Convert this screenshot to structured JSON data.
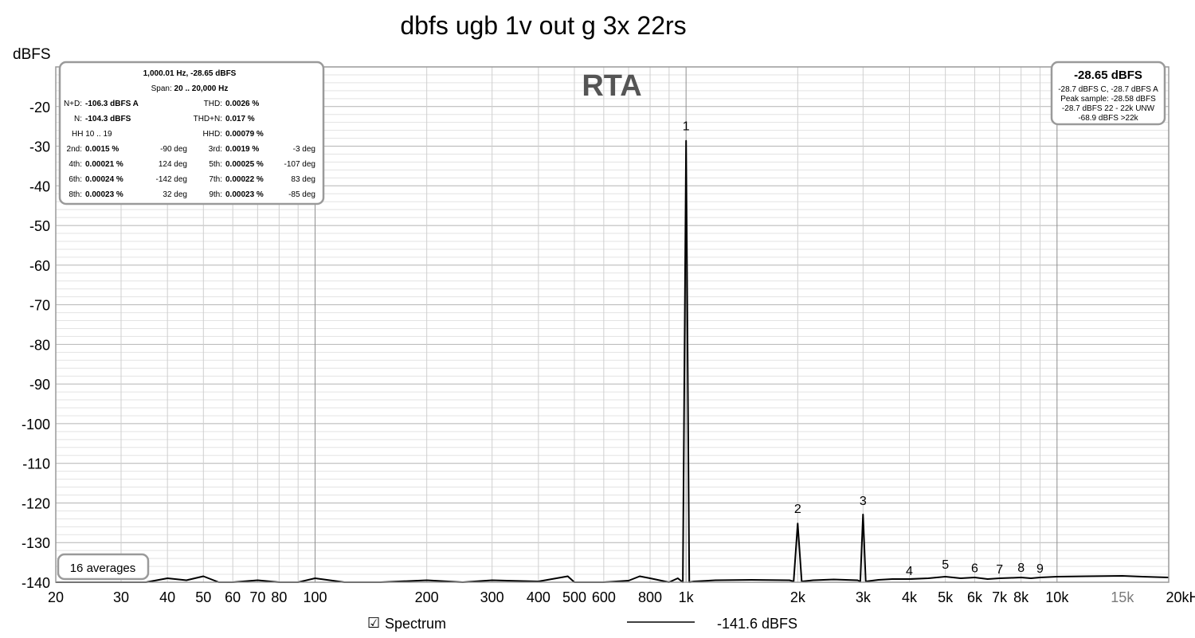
{
  "chart_data": {
    "type": "line",
    "title": "dbfs ugb 1v out g 3x 22rs",
    "ylabel": "dBFS",
    "xscale": "log",
    "xlim": [
      20,
      20000
    ],
    "ylim": [
      -140,
      -10
    ],
    "grid": true,
    "watermark": "RTA",
    "y_ticks": [
      {
        "v": -20,
        "label": "-20"
      },
      {
        "v": -30,
        "label": "-30"
      },
      {
        "v": -40,
        "label": "-40"
      },
      {
        "v": -50,
        "label": "-50"
      },
      {
        "v": -60,
        "label": "-60"
      },
      {
        "v": -70,
        "label": "-70"
      },
      {
        "v": -80,
        "label": "-80"
      },
      {
        "v": -90,
        "label": "-90"
      },
      {
        "v": -100,
        "label": "-100"
      },
      {
        "v": -110,
        "label": "-110"
      },
      {
        "v": -120,
        "label": "-120"
      },
      {
        "v": -130,
        "label": "-130"
      },
      {
        "v": -140,
        "label": "-140"
      }
    ],
    "x_ticks": [
      {
        "v": 20,
        "label": "20"
      },
      {
        "v": 30,
        "label": "30"
      },
      {
        "v": 40,
        "label": "40"
      },
      {
        "v": 50,
        "label": "50"
      },
      {
        "v": 60,
        "label": "60"
      },
      {
        "v": 70,
        "label": "70"
      },
      {
        "v": 80,
        "label": "80"
      },
      {
        "v": 100,
        "label": "100"
      },
      {
        "v": 200,
        "label": "200"
      },
      {
        "v": 300,
        "label": "300"
      },
      {
        "v": 400,
        "label": "400"
      },
      {
        "v": 500,
        "label": "500"
      },
      {
        "v": 600,
        "label": "600"
      },
      {
        "v": 800,
        "label": "800"
      },
      {
        "v": 1000,
        "label": "1k"
      },
      {
        "v": 2000,
        "label": "2k"
      },
      {
        "v": 3000,
        "label": "3k"
      },
      {
        "v": 4000,
        "label": "4k"
      },
      {
        "v": 5000,
        "label": "5k"
      },
      {
        "v": 6000,
        "label": "6k"
      },
      {
        "v": 7000,
        "label": "7k"
      },
      {
        "v": 8000,
        "label": "8k"
      },
      {
        "v": 10000,
        "label": "10k"
      },
      {
        "v": 15000,
        "label": "15k",
        "muted": true
      },
      {
        "v": 20000,
        "label": "20kHz"
      }
    ],
    "series": [
      {
        "name": "Spectrum",
        "color": "#000000",
        "x": [
          20,
          25,
          30,
          35,
          40,
          45,
          50,
          55,
          60,
          70,
          80,
          90,
          100,
          120,
          150,
          200,
          250,
          300,
          400,
          480,
          500,
          600,
          700,
          750,
          800,
          900,
          950,
          980,
          1000,
          1020,
          1050,
          1200,
          1500,
          1900,
          1950,
          2000,
          2050,
          2200,
          2500,
          2900,
          2950,
          3000,
          3050,
          3300,
          3600,
          4000,
          4500,
          5000,
          5500,
          6000,
          6500,
          7000,
          7500,
          8000,
          8500,
          9000,
          10000,
          12000,
          15000,
          17000,
          20000
        ],
        "y": [
          -140,
          -140,
          -140,
          -140,
          -139,
          -139.5,
          -138.5,
          -140,
          -140,
          -139.5,
          -140,
          -140,
          -139,
          -140,
          -140,
          -139.5,
          -140,
          -139.5,
          -139.8,
          -138.5,
          -140,
          -140,
          -139.6,
          -138.5,
          -139,
          -140,
          -139,
          -140,
          -28.65,
          -140,
          -139.8,
          -139.5,
          -139.4,
          -139.5,
          -139.8,
          -125.2,
          -139.8,
          -139.5,
          -139.3,
          -139.5,
          -139.8,
          -122.9,
          -139.8,
          -139.4,
          -139.2,
          -139.2,
          -139,
          -138.6,
          -139,
          -138.8,
          -139.2,
          -139,
          -138.9,
          -138.8,
          -139,
          -138.8,
          -138.6,
          -138.5,
          -138.4,
          -138.6,
          -138.8
        ]
      }
    ],
    "annotations": [
      {
        "label": "1",
        "x": 1000,
        "y": -26
      },
      {
        "label": "2",
        "x": 2000,
        "y": -122.5
      },
      {
        "label": "3",
        "x": 3000,
        "y": -120.5
      },
      {
        "label": "4",
        "x": 4000,
        "y": -138.2
      },
      {
        "label": "5",
        "x": 5000,
        "y": -136.6
      },
      {
        "label": "6",
        "x": 6000,
        "y": -137.5
      },
      {
        "label": "7",
        "x": 7000,
        "y": -137.8
      },
      {
        "label": "8",
        "x": 8000,
        "y": -137.4
      },
      {
        "label": "9",
        "x": 9000,
        "y": -137.6
      }
    ]
  },
  "info_box": {
    "header": "1,000.01 Hz, -28.65 dBFS",
    "span_label": "Span:",
    "span_value": "20 .. 20,000 Hz",
    "rows": [
      {
        "l1": "N+D:",
        "v1": "-106.3 dBFS A",
        "l2": "THD:",
        "v2": "0.0026 %"
      },
      {
        "l1": "N:",
        "v1": "-104.3 dBFS",
        "l2": "THD+N:",
        "v2": "0.017 %"
      },
      {
        "l1": "HH 10 .. 19",
        "v1": "",
        "l2": "HHD:",
        "v2": "0.00079 %"
      }
    ],
    "harmonics": [
      {
        "l1": "2nd:",
        "v1": "0.0015 %",
        "p1": "-90 deg",
        "l2": "3rd:",
        "v2": "0.0019 %",
        "p2": "-3 deg"
      },
      {
        "l1": "4th:",
        "v1": "0.00021 %",
        "p1": "124 deg",
        "l2": "5th:",
        "v2": "0.00025 %",
        "p2": "-107 deg"
      },
      {
        "l1": "6th:",
        "v1": "0.00024 %",
        "p1": "-142 deg",
        "l2": "7th:",
        "v2": "0.00022 %",
        "p2": "83 deg"
      },
      {
        "l1": "8th:",
        "v1": "0.00023 %",
        "p1": "32 deg",
        "l2": "9th:",
        "v2": "0.00023 %",
        "p2": "-85 deg"
      }
    ]
  },
  "level_box": {
    "main": "-28.65 dBFS",
    "lines": [
      "-28.7 dBFS C, -28.7 dBFS A",
      "Peak sample: -28.58 dBFS",
      "-28.7 dBFS 22 - 22k UNW",
      "-68.9 dBFS >22k"
    ]
  },
  "averages_label": "16 averages",
  "legend": {
    "checkbox_glyph": "☑",
    "label": "Spectrum",
    "value": "-141.6 dBFS"
  }
}
